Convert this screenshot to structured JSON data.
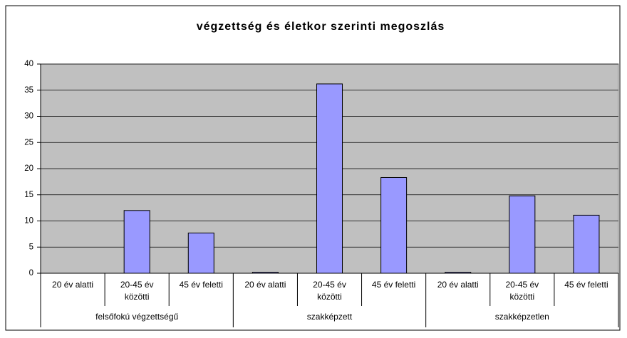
{
  "chart_data": {
    "type": "bar",
    "title": "végzettség és életkor szerinti megoszlás",
    "categories": [
      "20 év alatti",
      "20-45 év közötti",
      "45 év feletti",
      "20 év alatti",
      "20-45 év közötti",
      "45 év feletti",
      "20 év alatti",
      "20-45 év közötti",
      "45 év feletti"
    ],
    "category_groups": [
      "felsőfokú végzettségű",
      "szakképzett",
      "szakképzetlen"
    ],
    "values": [
      0,
      12,
      7.7,
      0.2,
      36.2,
      18.3,
      0.2,
      14.8,
      11.1
    ],
    "color": "#9999ff",
    "ylim": [
      0,
      40
    ],
    "yticks": [
      0,
      5,
      10,
      15,
      20,
      25,
      30,
      35,
      40
    ],
    "grid": true
  }
}
